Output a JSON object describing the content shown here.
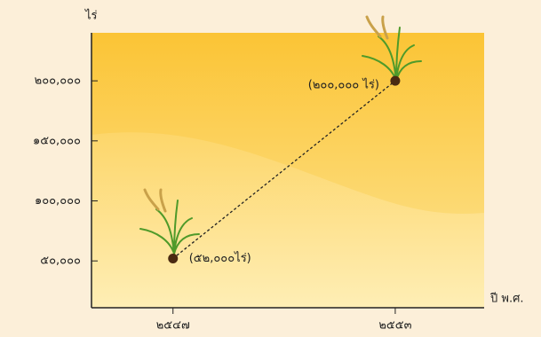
{
  "chart_data": {
    "type": "line",
    "y_label": "ไร่",
    "x_label": "ปี พ.ศ.",
    "x": [
      2547,
      2553
    ],
    "values": [
      52000,
      200000
    ],
    "value_labels": [
      "(๕๒,๐๐๐ไร่)",
      "(๒๐๐,๐๐๐ ไร่)"
    ],
    "color": "#4a2a12",
    "line_color": "#222222",
    "xlim": [
      2544.8,
      2555.4
    ],
    "xticks": [
      {
        "value": 2547,
        "label": "๒๕๔๗"
      },
      {
        "value": 2553,
        "label": "๒๕๕๓"
      }
    ],
    "ylim": [
      11000,
      240000
    ],
    "yticks": [
      {
        "value": 50000,
        "label": "๕๐,๐๐๐"
      },
      {
        "value": 100000,
        "label": "๑๐๐,๐๐๐"
      },
      {
        "value": 150000,
        "label": "๑๕๐,๐๐๐"
      },
      {
        "value": 200000,
        "label": "๒๐๐,๐๐๐"
      }
    ]
  }
}
